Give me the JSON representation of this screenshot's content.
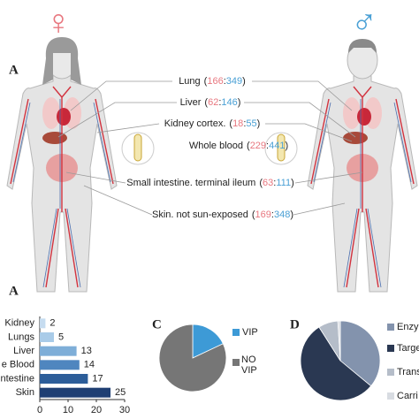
{
  "panel_a": {
    "label": "A",
    "female_symbol": "♀",
    "male_symbol": "♂",
    "female_color": "#e8777f",
    "male_color": "#4aa0d5",
    "format": {
      "open": "(",
      "sep": ":",
      "close": ")"
    },
    "tissues": [
      {
        "name": "Lung",
        "female": 166,
        "male": 349
      },
      {
        "name": "Liver",
        "female": 62,
        "male": 146
      },
      {
        "name": "Kidney cortex.",
        "female": 18,
        "male": 55
      },
      {
        "name": "Whole blood",
        "female": 229,
        "male": 441
      },
      {
        "name": "Small intestine. terminal ileum",
        "female": 63,
        "male": 111
      },
      {
        "name": "Skin. not sun-exposed",
        "female": 169,
        "male": 348
      }
    ]
  },
  "chart_data": [
    {
      "type": "bar",
      "orientation": "horizontal",
      "panel_label": "A",
      "categories": [
        "Kidney",
        "Lungs",
        "Liver",
        "e Blood",
        "ntestine",
        "Skin"
      ],
      "values": [
        2,
        5,
        13,
        14,
        17,
        25
      ],
      "colors": [
        "#c6dcf0",
        "#a9cbe8",
        "#7eaed8",
        "#4f86bf",
        "#2c5d99",
        "#1f3f73"
      ],
      "xlim": [
        0,
        30
      ],
      "xticks": [
        0,
        10,
        20,
        30
      ]
    },
    {
      "type": "pie",
      "panel_label": "C",
      "categories": [
        "VIP",
        "NO VIP"
      ],
      "values": [
        18,
        82
      ],
      "colors": [
        "#3d9ad6",
        "#767676"
      ]
    },
    {
      "type": "pie",
      "panel_label": "D",
      "categories": [
        "Enzy",
        "Targe",
        "Trans",
        "Carri"
      ],
      "values": [
        36,
        55,
        8,
        1
      ],
      "colors": [
        "#8393ad",
        "#2a3852",
        "#b5bdc9",
        "#d8dce2"
      ]
    }
  ]
}
